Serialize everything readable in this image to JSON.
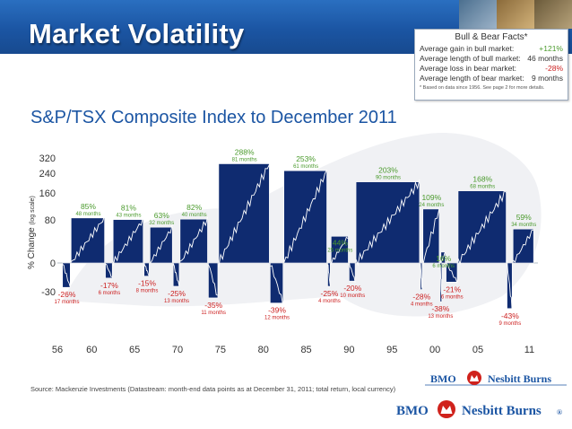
{
  "header": {
    "title": "Market Volatility"
  },
  "facts": {
    "title": "Bull & Bear Facts*",
    "rows": [
      {
        "label": "Average gain in bull market:",
        "value": "+121%",
        "kind": "pos"
      },
      {
        "label": "Average length of bull market:",
        "value": "46 months",
        "kind": "plain"
      },
      {
        "label": "Average loss in bear market:",
        "value": "-28%",
        "kind": "neg"
      },
      {
        "label": "Average length of bear market:",
        "value": "9 months",
        "kind": "plain"
      }
    ],
    "note": "* Based on data since 1956. See page 2 for more details."
  },
  "subtitle": "S&P/TSX Composite Index to December 2011",
  "source": "Source: Mackenzie Investments (Datastream: month-end data points as at December 31, 2011; total return, local currency)",
  "logos": {
    "bmo": "BMO",
    "nesbitt": "Nesbitt Burns",
    "reg": "®"
  },
  "colors": {
    "header": "#1b55a3",
    "bar": "#0f2b70",
    "gain": "#4a9a2c",
    "loss": "#cc1f1f",
    "title": "#1b55a3"
  },
  "chart_data": {
    "type": "bar",
    "title": "S&P/TSX Composite Index to December 2011",
    "ylabel": "% Change",
    "ylabel_note": "(log scale)",
    "yscale": "log",
    "yticks": [
      320,
      240,
      160,
      80,
      0,
      -30
    ],
    "xticks": [
      "56",
      "60",
      "65",
      "70",
      "75",
      "80",
      "85",
      "90",
      "95",
      "00",
      "05",
      "11"
    ],
    "xlim": [
      1956,
      2012
    ],
    "series": [
      {
        "name": "Bull markets",
        "periods": [
          {
            "start": 1957.6,
            "end": 1961.6,
            "change": 85,
            "label": "85%",
            "months": "48 months"
          },
          {
            "start": 1962.5,
            "end": 1966.1,
            "change": 81,
            "label": "81%",
            "months": "43 months"
          },
          {
            "start": 1966.8,
            "end": 1969.5,
            "change": 63,
            "label": "63%",
            "months": "32 months"
          },
          {
            "start": 1970.3,
            "end": 1973.6,
            "change": 82,
            "label": "82%",
            "months": "40 months"
          },
          {
            "start": 1974.8,
            "end": 1980.8,
            "change": 288,
            "label": "288%",
            "months": "81 months"
          },
          {
            "start": 1982.4,
            "end": 1987.5,
            "change": 253,
            "label": "253%",
            "months": "61 months"
          },
          {
            "start": 1987.9,
            "end": 1990.0,
            "change": 44,
            "label": "44%",
            "months": "25 months"
          },
          {
            "start": 1990.8,
            "end": 1998.3,
            "change": 203,
            "label": "203%",
            "months": "90 months"
          },
          {
            "start": 1998.6,
            "end": 2000.6,
            "change": 109,
            "label": "109%",
            "months": "24 months"
          },
          {
            "start": 2000.7,
            "end": 2001.3,
            "change": 16,
            "label": "16%",
            "months": "6 months"
          },
          {
            "start": 2002.7,
            "end": 2008.4,
            "change": 168,
            "label": "168%",
            "months": "68 months"
          },
          {
            "start": 2009.1,
            "end": 2011.6,
            "change": 59,
            "label": "59%",
            "months": "34 months"
          }
        ]
      },
      {
        "name": "Bear markets",
        "periods": [
          {
            "start": 1956.6,
            "end": 1957.6,
            "change": -26,
            "label": "-26%",
            "months": "17 months"
          },
          {
            "start": 1961.6,
            "end": 1962.5,
            "change": -17,
            "label": "-17%",
            "months": "6 months"
          },
          {
            "start": 1966.1,
            "end": 1966.8,
            "change": -15,
            "label": "-15%",
            "months": "8 months"
          },
          {
            "start": 1969.5,
            "end": 1970.3,
            "change": -25,
            "label": "-25%",
            "months": "13 months"
          },
          {
            "start": 1973.6,
            "end": 1974.8,
            "change": -35,
            "label": "-35%",
            "months": "11 months"
          },
          {
            "start": 1980.8,
            "end": 1982.4,
            "change": -39,
            "label": "-39%",
            "months": "12 months"
          },
          {
            "start": 1987.5,
            "end": 1987.9,
            "change": -25,
            "label": "-25%",
            "months": "4 months"
          },
          {
            "start": 1990.0,
            "end": 1990.8,
            "change": -20,
            "label": "-20%",
            "months": "10 months"
          },
          {
            "start": 1998.3,
            "end": 1998.6,
            "change": -28,
            "label": "-28%",
            "months": "4 months"
          },
          {
            "start": 2000.6,
            "end": 2000.7,
            "change": -38,
            "label": "-38%",
            "months": "13 months"
          },
          {
            "start": 2001.3,
            "end": 2002.7,
            "change": -21,
            "label": "-21%",
            "months": "6 months"
          },
          {
            "start": 2008.4,
            "end": 2009.1,
            "change": -43,
            "label": "-43%",
            "months": "9 months"
          }
        ]
      }
    ]
  }
}
